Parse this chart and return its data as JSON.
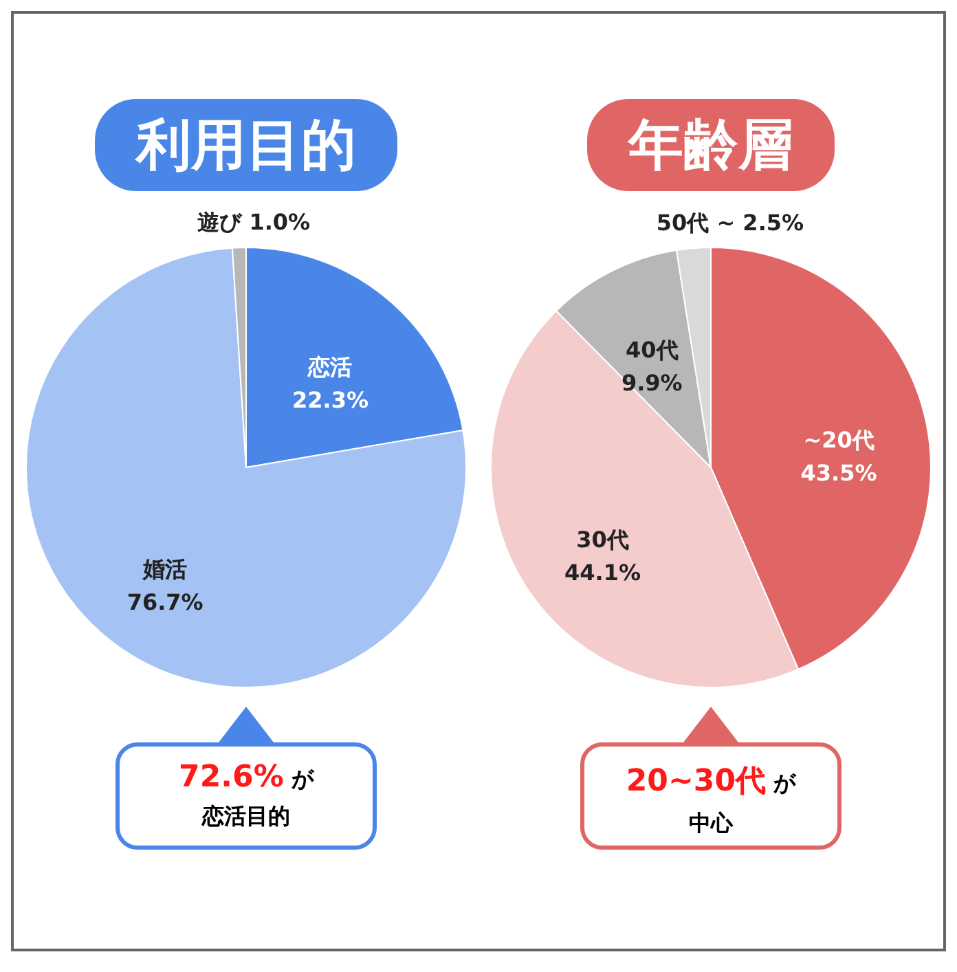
{
  "chart_data": [
    {
      "type": "pie",
      "title": "利用目的",
      "categories": [
        "恋活",
        "婚活",
        "遊び"
      ],
      "values": [
        22.3,
        76.7,
        1.0
      ],
      "value_labels": [
        "22.3%",
        "76.7%",
        "1.0%"
      ],
      "colors": [
        "#4a86e8",
        "#a4c2f4",
        "#b7b7b7"
      ],
      "legend": false,
      "annotations": [
        "72.6%",
        "が",
        "恋活目的"
      ]
    },
    {
      "type": "pie",
      "title": "年齢層",
      "categories": [
        "~20代",
        "30代",
        "40代",
        "50代 ~"
      ],
      "values": [
        43.5,
        44.1,
        9.9,
        2.5
      ],
      "value_labels": [
        "43.5%",
        "44.1%",
        "9.9%",
        "2.5%"
      ],
      "colors": [
        "#e06666",
        "#f4cccc",
        "#b7b7b7",
        "#d9d9d9"
      ],
      "legend": false,
      "annotations": [
        "20~30代",
        "が",
        "中心"
      ]
    }
  ]
}
